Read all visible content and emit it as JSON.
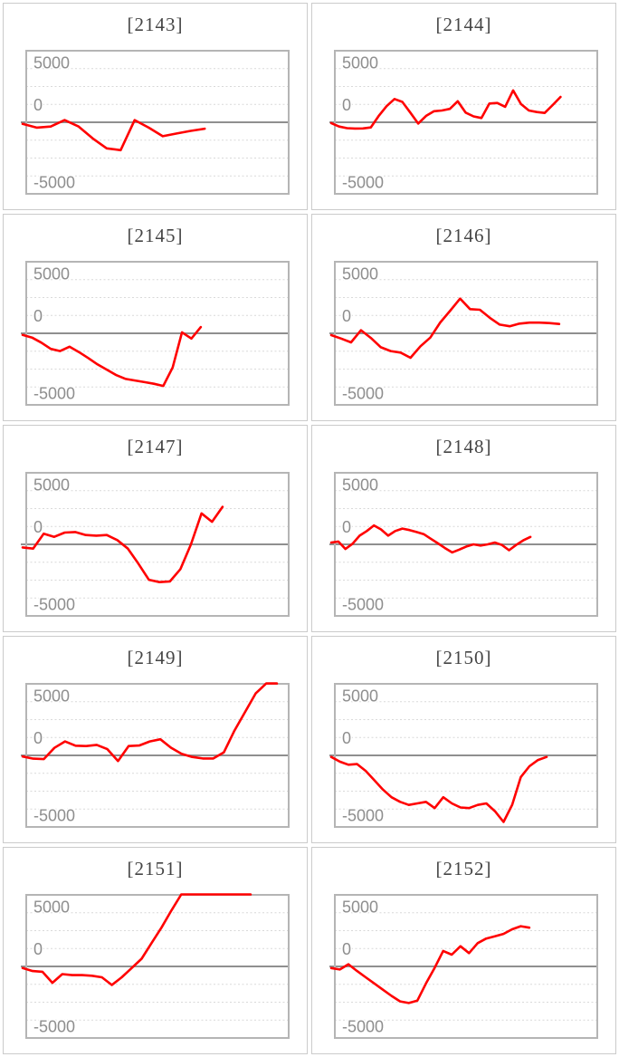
{
  "page": {
    "background": "#ffffff",
    "description": "grid of per-machine daily differential line charts"
  },
  "style": {
    "line_color": "#ff0000",
    "grid_color": "#d9d9d9",
    "zero_line_color": "#8f8f8f",
    "plot_border_color": "#b5b5b5",
    "cell_border_color": "#cbcbcb",
    "tick_label_color": "#8e8e8e",
    "title_color": "#454545"
  },
  "chart_data": [
    {
      "type": "line",
      "title": "[2143]",
      "yticks": [
        "5000",
        "0",
        "-5000"
      ],
      "ylim": [
        -6667,
        6667
      ],
      "grid": "horizontal-dotted",
      "legend": "none",
      "end_fraction": 0.68,
      "values": [
        -150,
        -500,
        -400,
        200,
        -400,
        -1500,
        -2430,
        -2600,
        200,
        -500,
        -1300,
        -1050,
        -800,
        -600
      ]
    },
    {
      "type": "line",
      "title": "[2144]",
      "yticks": [
        "5000",
        "0",
        "-5000"
      ],
      "ylim": [
        -6667,
        6667
      ],
      "grid": "horizontal-dotted",
      "legend": "none",
      "end_fraction": 0.86,
      "values": [
        -80,
        -400,
        -550,
        -580,
        -570,
        -480,
        580,
        1500,
        2170,
        1900,
        900,
        -120,
        600,
        1030,
        1100,
        1250,
        1960,
        900,
        550,
        400,
        1750,
        1800,
        1440,
        2970,
        1700,
        1100,
        950,
        870,
        1600,
        2360
      ]
    },
    {
      "type": "line",
      "title": "[2145]",
      "yticks": [
        "5000",
        "0",
        "-5000"
      ],
      "ylim": [
        -6667,
        6667
      ],
      "grid": "horizontal-dotted",
      "legend": "none",
      "end_fraction": 0.665,
      "values": [
        -150,
        -400,
        -870,
        -1450,
        -1650,
        -1250,
        -1750,
        -2300,
        -2900,
        -3400,
        -3900,
        -4250,
        -4400,
        -4550,
        -4700,
        -4900,
        -3180,
        90,
        -490,
        580
      ]
    },
    {
      "type": "line",
      "title": "[2146]",
      "yticks": [
        "5000",
        "0",
        "-5000"
      ],
      "ylim": [
        -6667,
        6667
      ],
      "grid": "horizontal-dotted",
      "legend": "none",
      "end_fraction": 0.855,
      "values": [
        -170,
        -490,
        -840,
        290,
        -430,
        -1300,
        -1650,
        -1800,
        -2280,
        -1210,
        -400,
        1010,
        2110,
        3230,
        2250,
        2190,
        1440,
        810,
        660,
        900,
        1000,
        1000,
        950,
        870
      ]
    },
    {
      "type": "line",
      "title": "[2147]",
      "yticks": [
        "5000",
        "0",
        "-5000"
      ],
      "ylim": [
        -6667,
        6667
      ],
      "grid": "horizontal-dotted",
      "legend": "none",
      "end_fraction": 0.748,
      "values": [
        -290,
        -400,
        1000,
        700,
        1100,
        1150,
        870,
        810,
        870,
        400,
        -400,
        -1800,
        -3300,
        -3520,
        -3450,
        -2300,
        0,
        2890,
        2100,
        3490
      ]
    },
    {
      "type": "line",
      "title": "[2148]",
      "yticks": [
        "5000",
        "0",
        "-5000"
      ],
      "ylim": [
        -6667,
        6667
      ],
      "grid": "horizontal-dotted",
      "legend": "none",
      "end_fraction": 0.745,
      "values": [
        170,
        260,
        -430,
        60,
        810,
        1240,
        1760,
        1390,
        810,
        1240,
        1470,
        1330,
        1150,
        950,
        520,
        90,
        -350,
        -750,
        -490,
        -200,
        0,
        -120,
        0,
        170,
        -60,
        -550,
        -60,
        370,
        690
      ]
    },
    {
      "type": "line",
      "title": "[2149]",
      "yticks": [
        "5000",
        "0",
        "-5000"
      ],
      "ylim": [
        -6667,
        6667
      ],
      "grid": "horizontal-dotted",
      "legend": "none",
      "end_fraction": 0.955,
      "values": [
        -100,
        -300,
        -350,
        700,
        1300,
        900,
        870,
        980,
        580,
        -520,
        870,
        920,
        1300,
        1500,
        720,
        140,
        -140,
        -290,
        -290,
        290,
        2310,
        4040,
        5770,
        6700,
        6700
      ]
    },
    {
      "type": "line",
      "title": "[2150]",
      "yticks": [
        "5000",
        "0",
        "-5000"
      ],
      "ylim": [
        -6667,
        6667
      ],
      "grid": "horizontal-dotted",
      "legend": "none",
      "end_fraction": 0.807,
      "values": [
        -140,
        -580,
        -870,
        -810,
        -1440,
        -2310,
        -3180,
        -3900,
        -4330,
        -4620,
        -4470,
        -4330,
        -4910,
        -3900,
        -4470,
        -4850,
        -4910,
        -4620,
        -4470,
        -5200,
        -6200,
        -4620,
        -2020,
        -1010,
        -430,
        -140
      ]
    },
    {
      "type": "line",
      "title": "[2151]",
      "yticks": [
        "5000",
        "0",
        "-5000"
      ],
      "ylim": [
        -6667,
        6667
      ],
      "grid": "horizontal-dotted",
      "legend": "none",
      "end_fraction": 0.855,
      "values": [
        -150,
        -430,
        -500,
        -1530,
        -720,
        -810,
        -810,
        -870,
        -1010,
        -1730,
        -1010,
        -150,
        720,
        2170,
        3610,
        5200,
        6800,
        6900,
        6900,
        6900,
        6900,
        6900,
        6900,
        6900
      ]
    },
    {
      "type": "line",
      "title": "[2152]",
      "yticks": [
        "5000",
        "0",
        "-5000"
      ],
      "ylim": [
        -6667,
        6667
      ],
      "grid": "horizontal-dotted",
      "legend": "none",
      "end_fraction": 0.741,
      "values": [
        -150,
        -290,
        200,
        -430,
        -1010,
        -1590,
        -2170,
        -2740,
        -3260,
        -3410,
        -3180,
        -1590,
        -140,
        1440,
        1100,
        1880,
        1240,
        2170,
        2600,
        2800,
        3030,
        3460,
        3750,
        3610
      ]
    }
  ]
}
